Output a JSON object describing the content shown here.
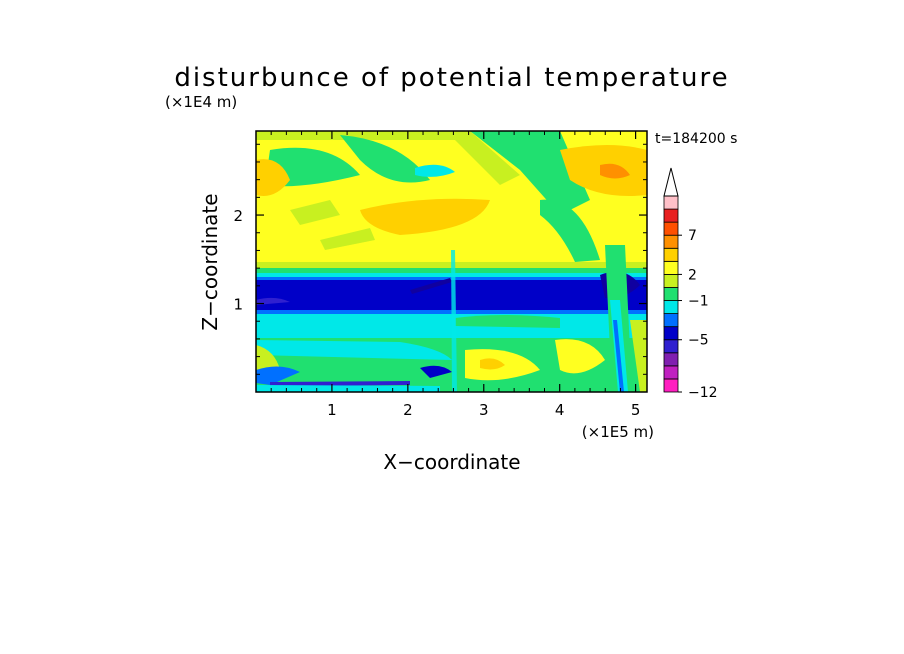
{
  "chart_data": {
    "type": "heatmap",
    "title": "disturbunce of potential temperature",
    "xlabel": "X−coordinate",
    "ylabel": "Z−coordinate",
    "x_unit": "(×1E5 m)",
    "y_unit": "(×1E4 m)",
    "time_label": "t=184200 s",
    "xlim": [
      0,
      5.15
    ],
    "ylim": [
      0,
      2.95
    ],
    "x_ticks": [
      1,
      2,
      3,
      4,
      5
    ],
    "y_ticks": [
      1,
      2
    ],
    "x_tick_labels": [
      "1",
      "2",
      "3",
      "4",
      "5"
    ],
    "y_tick_labels": [
      "1",
      "2"
    ],
    "colorbar": {
      "labels": [
        {
          "text": "7",
          "value": 7
        },
        {
          "text": "2",
          "value": 2
        },
        {
          "text": "−1",
          "value": -1
        },
        {
          "text": "−5",
          "value": -5
        },
        {
          "text": "−12",
          "value": -12
        }
      ],
      "colors": [
        "#ff1ec0",
        "#c020c0",
        "#8020b0",
        "#3020d0",
        "#0000c8",
        "#0070ff",
        "#00e8e8",
        "#20e070",
        "#c8f020",
        "#ffff20",
        "#ffd000",
        "#ff9000",
        "#ff5000",
        "#e82020",
        "#ffc0c8"
      ],
      "extend": "max"
    },
    "fields": [
      {
        "z_range": [
          2.6,
          2.95
        ],
        "value": 1,
        "note": "upper layer, mixed yellow/green"
      },
      {
        "z_range": [
          1.45,
          2.6
        ],
        "value": 1.5,
        "note": "yellow with orange streaks"
      },
      {
        "z_range": [
          1.3,
          1.45
        ],
        "value": -0.5,
        "note": "green/cyan transition"
      },
      {
        "z_range": [
          0.85,
          1.3
        ],
        "value": -3,
        "note": "dark blue band"
      },
      {
        "z_range": [
          0.6,
          0.85
        ],
        "value": -1.5,
        "note": "cyan band"
      },
      {
        "z_range": [
          0.0,
          0.6
        ],
        "value": 0,
        "note": "green/yellow near surface"
      }
    ]
  }
}
